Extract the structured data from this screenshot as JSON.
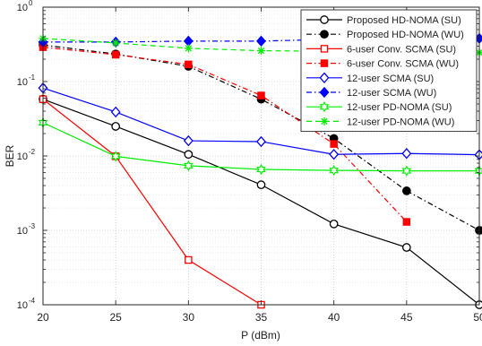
{
  "chart_data": {
    "type": "line",
    "xlabel": "P (dBm)",
    "ylabel": "BER",
    "x_ticks": [
      20,
      25,
      30,
      35,
      40,
      45,
      50
    ],
    "x_tick_labels": [
      "20",
      "25",
      "30",
      "35",
      "40",
      "45",
      "50"
    ],
    "xlim": [
      20,
      50
    ],
    "yscale": "log",
    "ylim": [
      0.0001,
      1
    ],
    "y_ticks": [
      {
        "value": 0.0001,
        "base": "10",
        "exp": "-4"
      },
      {
        "value": 0.001,
        "base": "10",
        "exp": "-3"
      },
      {
        "value": 0.01,
        "base": "10",
        "exp": "-2"
      },
      {
        "value": 0.1,
        "base": "10",
        "exp": "-1"
      },
      {
        "value": 1,
        "base": "10",
        "exp": "0"
      }
    ],
    "grid": true,
    "legend_position": "top-right",
    "series": [
      {
        "name": "Proposed HD-NOMA (SU)",
        "color": "#000000",
        "dash": "solid",
        "marker": "circle-open",
        "x": [
          20,
          25,
          30,
          35,
          40,
          45,
          50
        ],
        "y": [
          0.058,
          0.025,
          0.0105,
          0.0041,
          0.00122,
          0.00059,
          0.0001
        ]
      },
      {
        "name": "Proposed HD-NOMA (WU)",
        "color": "#000000",
        "dash": "dashdot",
        "marker": "circle-filled",
        "x": [
          20,
          25,
          30,
          35,
          40,
          45,
          50
        ],
        "y": [
          0.31,
          0.235,
          0.16,
          0.058,
          0.0172,
          0.0034,
          0.001
        ]
      },
      {
        "name": "6-user Conv. SCMA (SU)",
        "color": "#ff0000",
        "dash": "solid",
        "marker": "square-open",
        "x": [
          20,
          25,
          30,
          35
        ],
        "y": [
          0.058,
          0.0099,
          0.0004,
          0.0001
        ]
      },
      {
        "name": "6-user Conv. SCMA (WU)",
        "color": "#ff0000",
        "dash": "dashdot",
        "marker": "square-filled",
        "x": [
          20,
          25,
          30,
          35,
          40,
          45
        ],
        "y": [
          0.29,
          0.23,
          0.17,
          0.065,
          0.0145,
          0.0013
        ]
      },
      {
        "name": "12-user SCMA (SU)",
        "color": "#0000ff",
        "dash": "solid",
        "marker": "diamond-open",
        "x": [
          20,
          25,
          30,
          35,
          40,
          45,
          50
        ],
        "y": [
          0.082,
          0.039,
          0.016,
          0.0156,
          0.0105,
          0.0108,
          0.0104
        ]
      },
      {
        "name": "12-user SCMA (WU)",
        "color": "#0000ff",
        "dash": "dashdot",
        "marker": "diamond-filled",
        "x": [
          20,
          25,
          30,
          35,
          40,
          45,
          50
        ],
        "y": [
          0.34,
          0.34,
          0.35,
          0.35,
          0.37,
          0.37,
          0.38
        ]
      },
      {
        "name": "12-user PD-NOMA (SU)",
        "color": "#00ee00",
        "dash": "solid",
        "marker": "hexagram-open",
        "x": [
          20,
          25,
          30,
          35,
          40,
          45,
          50
        ],
        "y": [
          0.028,
          0.0099,
          0.0074,
          0.0066,
          0.0064,
          0.0063,
          0.0063
        ]
      },
      {
        "name": "12-user PD-NOMA (WU)",
        "color": "#00ee00",
        "dash": "dashed",
        "marker": "star",
        "x": [
          20,
          25,
          30,
          35,
          40,
          45,
          50
        ],
        "y": [
          0.38,
          0.33,
          0.28,
          0.26,
          0.255,
          0.25,
          0.245
        ]
      }
    ]
  }
}
